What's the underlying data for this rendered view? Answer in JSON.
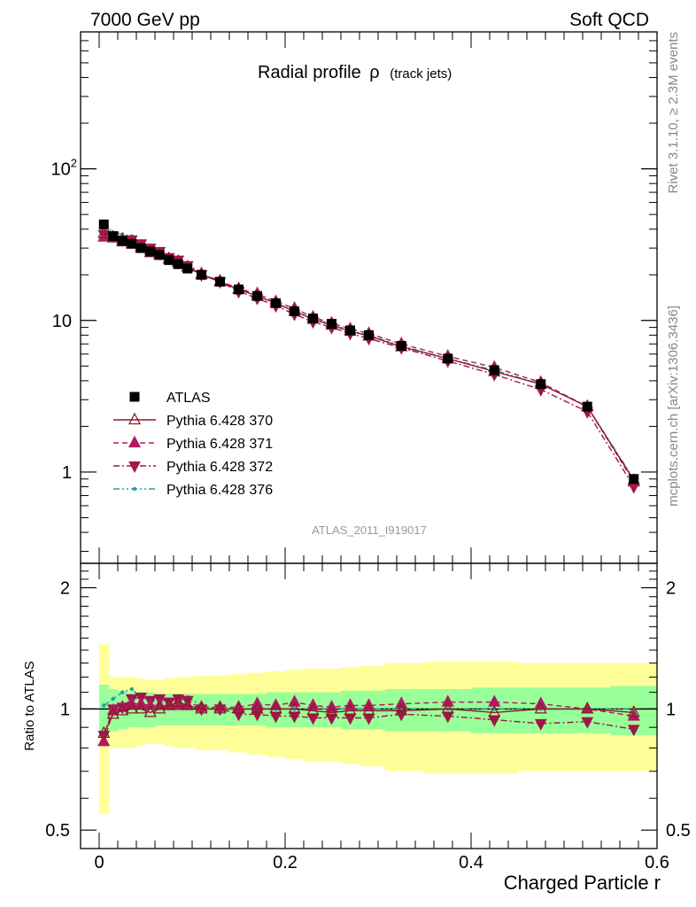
{
  "header": {
    "left": "7000 GeV pp",
    "right": "Soft QCD"
  },
  "side_text": {
    "rivet": "Rivet 3.1.10, ≥ 2.3M events",
    "source": "mcplots.cern.ch [arXiv:1306.3436]"
  },
  "chart_data": [
    {
      "type": "scatter",
      "title": "Radial profile ρ",
      "title_main": "Radial profile",
      "title_symbol": "ρ",
      "title_suffix": "(track jets)",
      "xlabel": "Charged Particle r",
      "ylabel": "",
      "xlim": [
        -0.02,
        0.6
      ],
      "ylim": [
        0.25,
        800
      ],
      "yscale": "log",
      "y_tick_labels": [
        "1",
        "10",
        "10^2"
      ],
      "watermark": "ATLAS_2011_I919017",
      "legend_position": "left-middle",
      "x": [
        0.005,
        0.015,
        0.025,
        0.035,
        0.045,
        0.055,
        0.065,
        0.075,
        0.085,
        0.095,
        0.11,
        0.13,
        0.15,
        0.17,
        0.19,
        0.21,
        0.23,
        0.25,
        0.27,
        0.29,
        0.325,
        0.375,
        0.425,
        0.475,
        0.525,
        0.575
      ],
      "series": [
        {
          "name": "ATLAS",
          "color": "#000000",
          "marker": "square-filled",
          "line": "none",
          "values": [
            43,
            36,
            33.5,
            32,
            30,
            28.5,
            27,
            25,
            23.5,
            22,
            20,
            18,
            16,
            14.5,
            13,
            11.5,
            10.3,
            9.5,
            8.6,
            8.0,
            6.8,
            5.6,
            4.7,
            3.8,
            2.7,
            0.9
          ]
        },
        {
          "name": "Pythia 6.428 370",
          "color": "#8b1a2b",
          "marker": "triangle-up-open",
          "line": "solid",
          "values": [
            37.5,
            35,
            33,
            32,
            30,
            28,
            27,
            25.5,
            24.5,
            22.5,
            20,
            18,
            16,
            14.5,
            13,
            11.5,
            10.2,
            9.3,
            8.5,
            7.9,
            6.7,
            5.6,
            4.6,
            3.8,
            2.7,
            0.88
          ]
        },
        {
          "name": "Pythia 6.428 371",
          "color": "#b0195f",
          "marker": "triangle-up-filled",
          "line": "dashed",
          "values": [
            35.5,
            35.5,
            34,
            33,
            31,
            29,
            27.5,
            25.5,
            24,
            22.5,
            20.3,
            18.2,
            16.2,
            15,
            13.3,
            12,
            10.5,
            9.6,
            8.8,
            8.2,
            7.0,
            5.8,
            4.9,
            3.9,
            2.7,
            0.86
          ]
        },
        {
          "name": "Pythia 6.428 372",
          "color": "#a0154a",
          "marker": "triangle-down-filled",
          "line": "dashdot",
          "values": [
            37,
            36,
            34,
            34,
            32,
            30,
            28.5,
            26,
            25,
            23,
            20,
            18,
            15.5,
            14,
            12.5,
            11,
            9.8,
            9.0,
            8.2,
            7.6,
            6.6,
            5.4,
            4.4,
            3.5,
            2.5,
            0.8
          ]
        },
        {
          "name": "Pythia 6.428 376",
          "color": "#20a0a0",
          "marker": "dot",
          "line": "dashdotdot",
          "values": [
            44,
            38,
            37,
            36,
            32,
            30,
            28,
            26,
            24.5,
            23.5,
            20.5,
            18,
            16,
            14.5,
            13,
            11.5,
            10.3,
            9.5,
            8.6,
            8.0,
            6.8,
            5.6,
            4.7,
            3.8,
            2.7,
            0.9
          ]
        }
      ]
    },
    {
      "type": "scatter",
      "title": "",
      "xlabel": "Charged Particle r",
      "ylabel": "Ratio to ATLAS",
      "xlim": [
        -0.02,
        0.6
      ],
      "ylim": [
        0.45,
        2.3
      ],
      "yscale": "log",
      "y_tick_labels": [
        "0.5",
        "1",
        "2"
      ],
      "x_tick_labels": [
        "0",
        "0.2",
        "0.4",
        "0.6"
      ],
      "band_inner_relative": [
        0.15,
        0.12,
        0.11,
        0.1,
        0.1,
        0.1,
        0.09,
        0.09,
        0.09,
        0.09,
        0.09,
        0.09,
        0.09,
        0.09,
        0.1,
        0.1,
        0.1,
        0.1,
        0.11,
        0.11,
        0.12,
        0.12,
        0.13,
        0.13,
        0.13,
        0.14
      ],
      "band_outer_relative": [
        0.45,
        0.2,
        0.2,
        0.2,
        0.19,
        0.18,
        0.18,
        0.19,
        0.2,
        0.2,
        0.21,
        0.21,
        0.22,
        0.23,
        0.24,
        0.25,
        0.26,
        0.26,
        0.27,
        0.28,
        0.3,
        0.31,
        0.31,
        0.3,
        0.3,
        0.3
      ],
      "series": [
        {
          "name": "Pythia 6.428 370",
          "values": [
            0.87,
            0.97,
            0.99,
            1.0,
            1.0,
            0.98,
            1.0,
            1.02,
            1.04,
            1.02,
            1.0,
            1.0,
            1.0,
            1.0,
            1.0,
            1.0,
            0.99,
            0.98,
            0.99,
            0.99,
            0.99,
            1.0,
            0.98,
            1.0,
            1.0,
            0.98
          ]
        },
        {
          "name": "Pythia 6.428 371",
          "values": [
            0.83,
            0.99,
            1.01,
            1.03,
            1.03,
            1.02,
            1.02,
            1.02,
            1.02,
            1.02,
            1.01,
            1.01,
            1.01,
            1.03,
            1.02,
            1.04,
            1.02,
            1.01,
            1.02,
            1.02,
            1.03,
            1.04,
            1.04,
            1.03,
            1.0,
            0.96
          ]
        },
        {
          "name": "Pythia 6.428 372",
          "values": [
            0.86,
            1.0,
            1.01,
            1.06,
            1.07,
            1.05,
            1.06,
            1.04,
            1.06,
            1.05,
            1.0,
            1.0,
            0.97,
            0.97,
            0.96,
            0.96,
            0.95,
            0.95,
            0.95,
            0.95,
            0.97,
            0.96,
            0.94,
            0.92,
            0.93,
            0.89
          ]
        },
        {
          "name": "Pythia 6.428 376",
          "values": [
            1.02,
            1.06,
            1.1,
            1.12,
            1.07,
            1.05,
            1.04,
            1.04,
            1.04,
            1.07,
            1.02,
            1.0,
            1.0,
            1.0,
            1.0,
            1.0,
            1.0,
            1.0,
            1.0,
            1.0,
            1.0,
            1.0,
            1.0,
            1.0,
            1.0,
            1.0
          ]
        }
      ]
    }
  ]
}
